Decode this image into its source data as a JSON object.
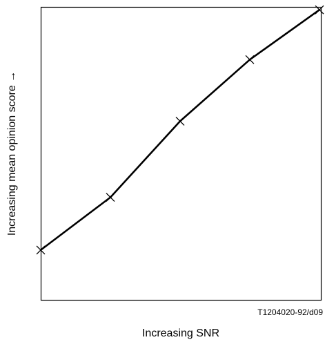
{
  "chart_data": {
    "type": "line",
    "title": "",
    "xlabel": "Increasing SNR",
    "ylabel": "Increasing mean opinion score →",
    "figure_id": "T1204020-92/d09",
    "x": [
      0,
      1,
      2,
      3,
      4
    ],
    "series": [
      {
        "values": [
          0.17,
          0.35,
          0.61,
          0.82,
          0.99
        ]
      }
    ],
    "xlim": [
      0,
      4
    ],
    "ylim": [
      0,
      1
    ],
    "marker": "x",
    "grid": false,
    "legend": "none",
    "line_color": "#000000"
  }
}
